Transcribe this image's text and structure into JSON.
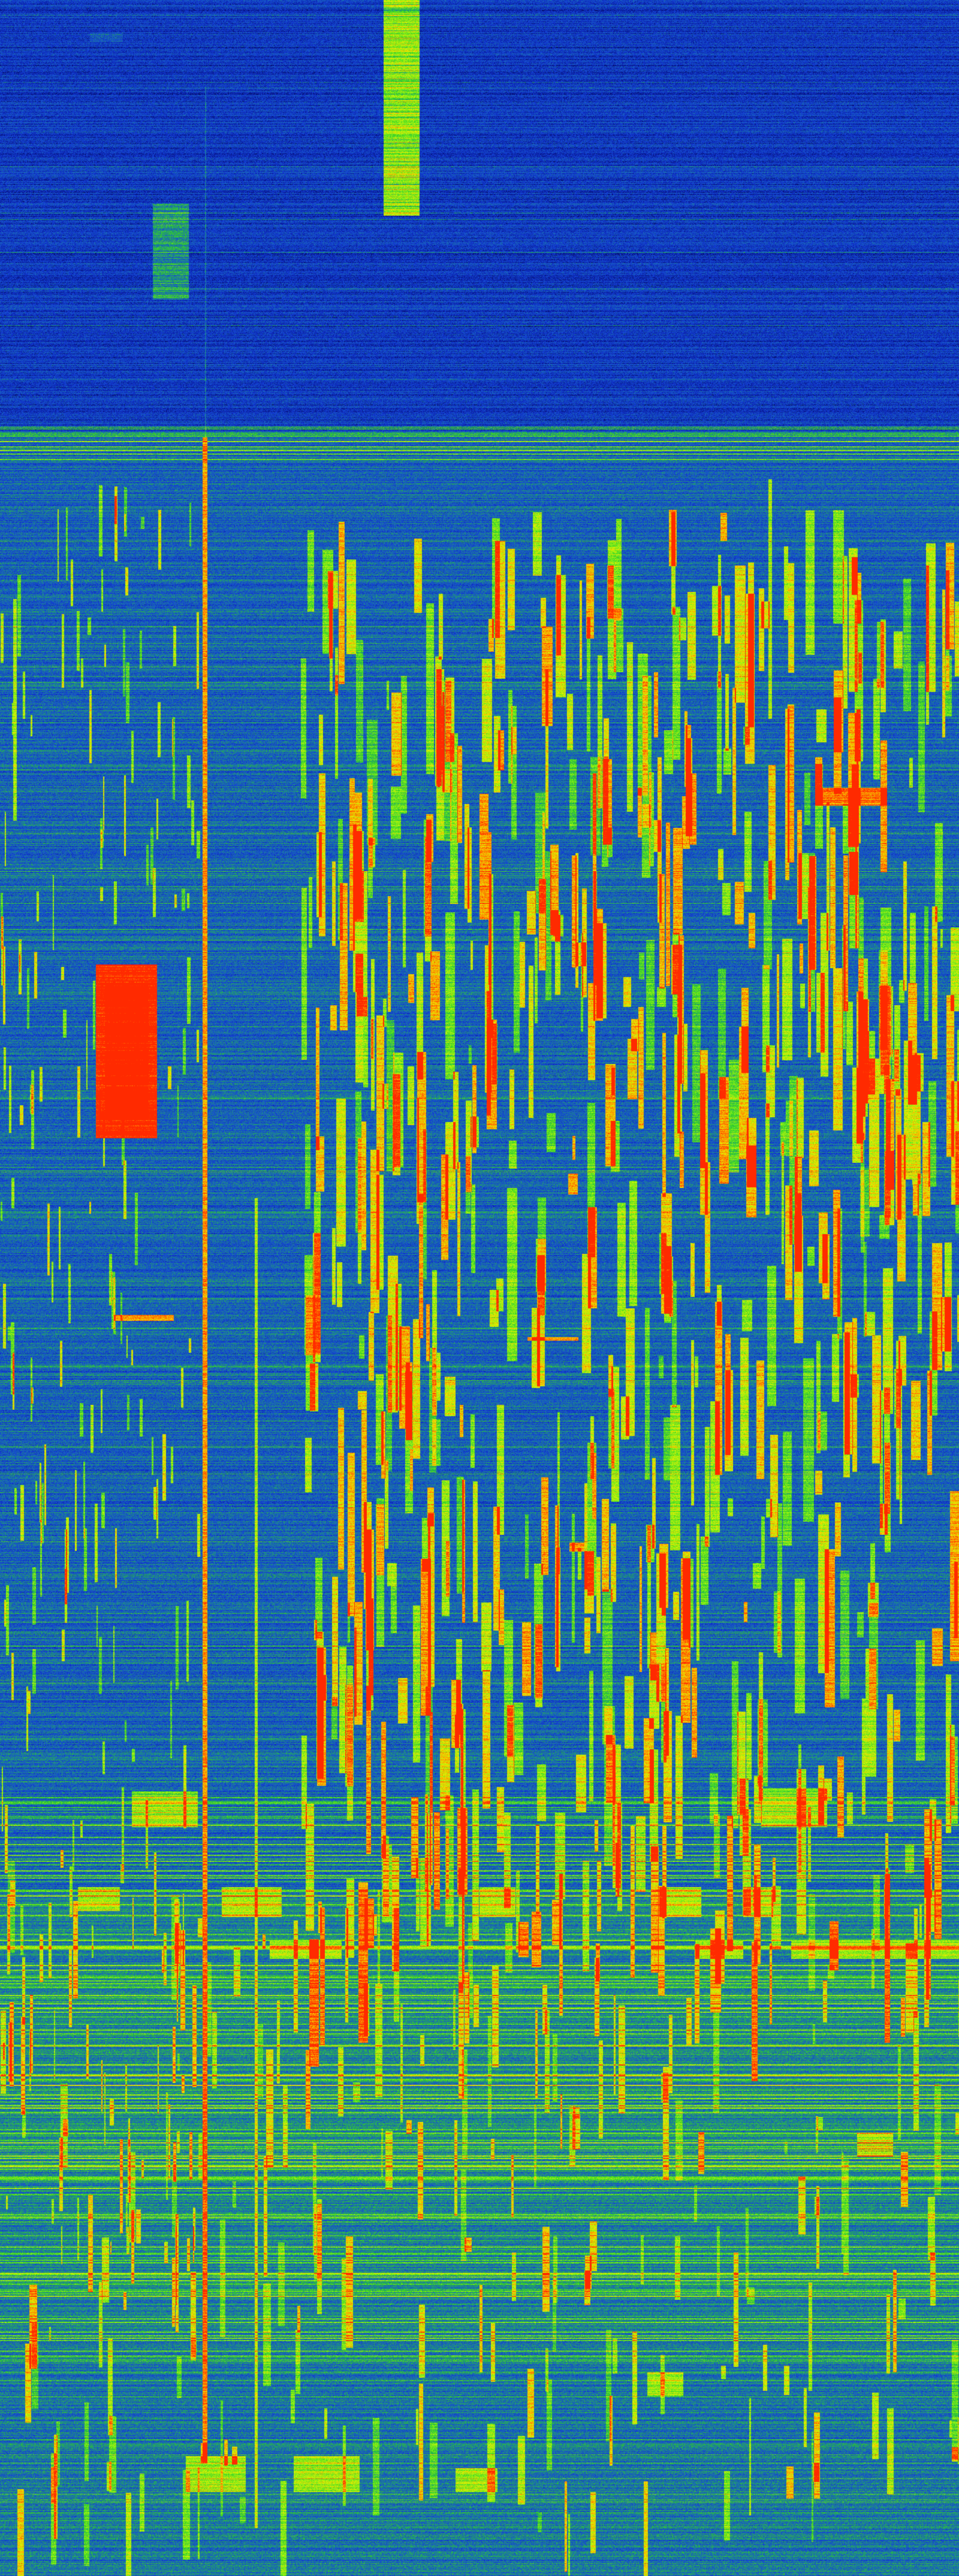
{
  "colormap": [
    "#00002a",
    "#0a1ea0",
    "#1440d8",
    "#1c78a8",
    "#2ccc2a",
    "#7cf01c",
    "#e8f000",
    "#ff9a00",
    "#ff2a00"
  ],
  "background_color": "#1436c0"
}
